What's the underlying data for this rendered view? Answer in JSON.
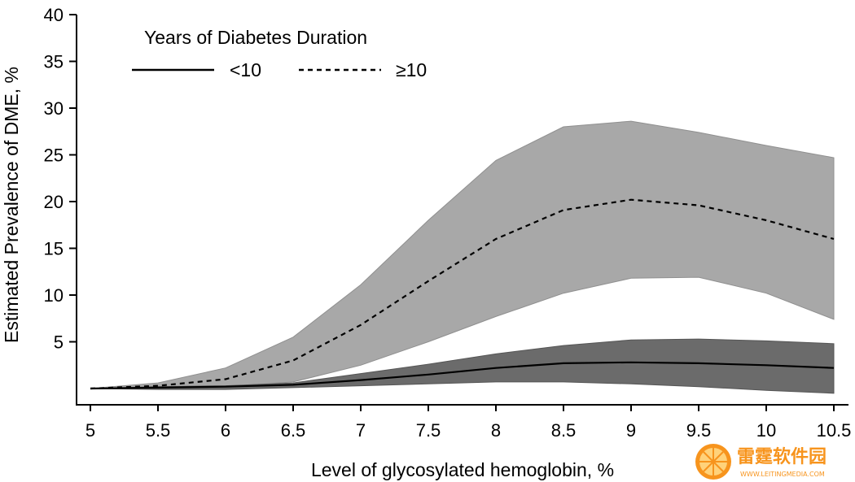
{
  "chart_data": {
    "type": "area",
    "xlabel": "Level of glycosylated hemoglobin, %",
    "ylabel": "Estimated Prevalence of DME, %",
    "xlim": [
      5,
      10.5
    ],
    "ylim": [
      0,
      40
    ],
    "x_ticks": [
      "5",
      "5.5",
      "6",
      "6.5",
      "7",
      "7.5",
      "8",
      "8.5",
      "9",
      "9.5",
      "10",
      "10.5"
    ],
    "y_ticks": [
      "5",
      "10",
      "15",
      "20",
      "25",
      "30",
      "35",
      "40"
    ],
    "x": [
      5,
      5.5,
      6,
      6.5,
      7,
      7.5,
      8,
      8.5,
      9,
      9.5,
      10,
      10.5
    ],
    "legend": {
      "title": "Years of Diabetes Duration",
      "position": "top-left"
    },
    "series": [
      {
        "name": "<10",
        "line_style": "solid",
        "band_color": "#6b6b6b",
        "values": [
          0,
          0.1,
          0.2,
          0.4,
          0.9,
          1.5,
          2.2,
          2.7,
          2.8,
          2.7,
          2.5,
          2.2
        ],
        "lower": [
          0,
          -0.1,
          -0.1,
          0.1,
          0.3,
          0.5,
          0.7,
          0.7,
          0.5,
          0.2,
          -0.2,
          -0.5
        ],
        "upper": [
          0,
          0.2,
          0.3,
          0.6,
          1.6,
          2.6,
          3.7,
          4.6,
          5.2,
          5.3,
          5.1,
          4.8
        ]
      },
      {
        "name": "≥10",
        "line_style": "dashed",
        "band_color": "#a8a8a8",
        "values": [
          0,
          0.3,
          1.0,
          3.0,
          6.8,
          11.5,
          16.0,
          19.1,
          20.2,
          19.6,
          18.0,
          16.0
        ],
        "lower": [
          0,
          0.1,
          0.2,
          0.7,
          2.5,
          5.0,
          7.7,
          10.2,
          11.8,
          11.9,
          10.2,
          7.4
        ],
        "upper": [
          0,
          0.6,
          2.2,
          5.5,
          11.1,
          18.0,
          24.4,
          28.0,
          28.6,
          27.4,
          26.0,
          24.7
        ]
      }
    ]
  },
  "watermark": {
    "brand": "雷霆软件园",
    "url": "WWW.LEITINGMEDIA.COM"
  }
}
